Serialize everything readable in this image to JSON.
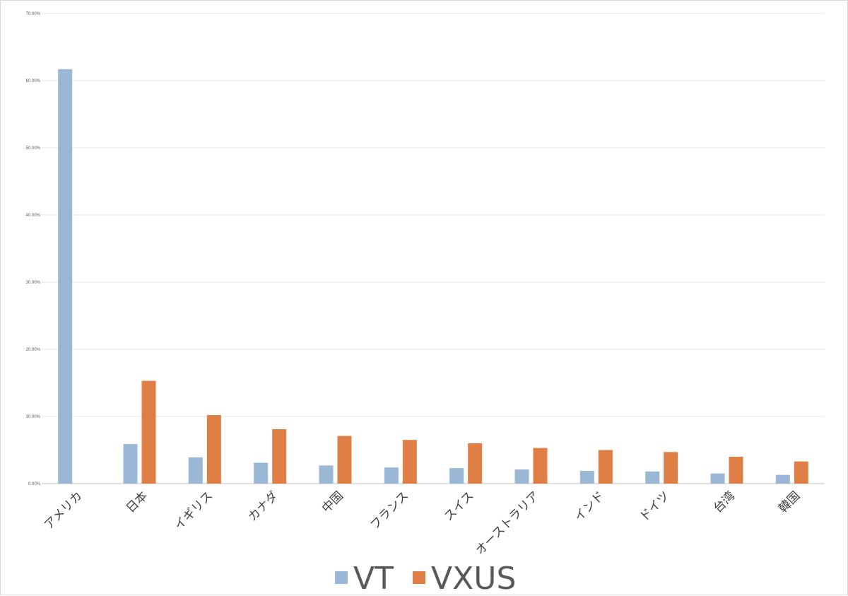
{
  "chart_data": {
    "type": "bar",
    "categories": [
      "アメリカ",
      "日本",
      "イギリス",
      "カナダ",
      "中国",
      "フランス",
      "スイス",
      "オーストラリア",
      "インド",
      "ドイツ",
      "台湾",
      "韓国"
    ],
    "series": [
      {
        "name": "VT",
        "color": "#9ab8d6",
        "values": [
          61.7,
          5.9,
          3.9,
          3.1,
          2.7,
          2.4,
          2.3,
          2.1,
          1.9,
          1.8,
          1.5,
          1.3
        ]
      },
      {
        "name": "VXUS",
        "color": "#e07f45",
        "values": [
          null,
          15.3,
          10.2,
          8.1,
          7.1,
          6.5,
          6.0,
          5.3,
          5.0,
          4.7,
          4.0,
          3.3
        ]
      }
    ],
    "ylim": [
      0,
      70
    ],
    "yticks": [
      "0.00%",
      "10.00%",
      "20.00%",
      "30.00%",
      "40.00%",
      "50.00%",
      "60.00%",
      "70.00%"
    ],
    "xlabel": "",
    "ylabel": "",
    "title": "",
    "grid": true,
    "legend_position": "bottom-center"
  }
}
